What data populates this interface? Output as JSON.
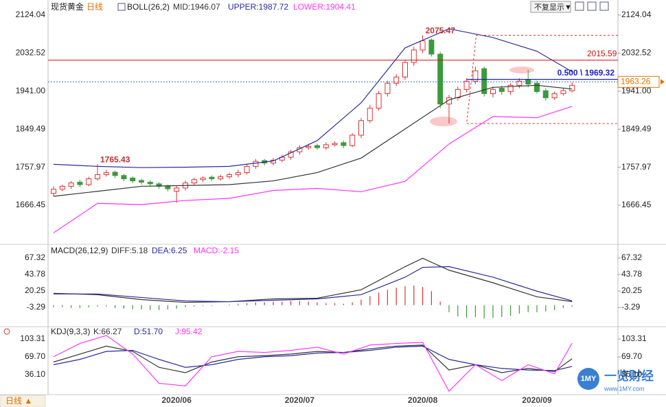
{
  "chart_data": [
    {
      "type": "candlestick",
      "title": "现货黄金",
      "period": "日线",
      "indicator": "BOLL(26,2)",
      "categories": [
        null,
        null,
        null,
        null,
        null,
        null,
        null,
        null,
        null,
        null,
        null,
        null,
        null,
        null,
        "2020/06",
        null,
        null,
        null,
        null,
        null,
        null,
        null,
        null,
        null,
        null,
        null,
        null,
        null,
        "2020/07",
        null,
        null,
        null,
        null,
        null,
        null,
        null,
        null,
        null,
        null,
        null,
        null,
        null,
        "2020/08",
        null,
        null,
        null,
        null,
        null,
        null,
        null,
        null,
        null,
        null,
        null,
        null,
        "2020/09",
        null,
        null,
        null,
        null
      ],
      "open": [
        1695,
        1705,
        1712,
        1722,
        1716,
        1730,
        1740,
        1746,
        1738,
        1732,
        1726,
        1722,
        1718,
        1712,
        1700,
        1708,
        1720,
        1728,
        1734,
        1730,
        1735,
        1740,
        1745,
        1760,
        1774,
        1768,
        1775,
        1782,
        1795,
        1805,
        1810,
        1805,
        1812,
        1817,
        1810,
        1835,
        1870,
        1900,
        1935,
        1960,
        1975,
        2010,
        2040,
        2064,
        2030,
        1910,
        1925,
        1945,
        1965,
        1995,
        1935,
        1948,
        1940,
        1955,
        1968,
        1960,
        1942,
        1925,
        1935,
        1942
      ],
      "high": [
        1712,
        1716,
        1725,
        1728,
        1735,
        1765.43,
        1752,
        1750,
        1742,
        1736,
        1730,
        1726,
        1722,
        1716,
        1714,
        1726,
        1733,
        1736,
        1738,
        1740,
        1745,
        1752,
        1766,
        1778,
        1778,
        1780,
        1788,
        1800,
        1811,
        1814,
        1815,
        1818,
        1820,
        1822,
        1840,
        1876,
        1908,
        1942,
        1966,
        1982,
        2016,
        2048,
        2075.47,
        2068,
        2036,
        1932,
        1952,
        1972,
        2000,
        2000,
        1952,
        1954,
        1960,
        1972,
        1992,
        1966,
        1948,
        1940,
        1948,
        1962
      ],
      "low": [
        1688,
        1700,
        1706,
        1710,
        1712,
        1726,
        1735,
        1732,
        1724,
        1720,
        1716,
        1712,
        1706,
        1700,
        1672,
        1702,
        1714,
        1722,
        1724,
        1726,
        1730,
        1734,
        1740,
        1754,
        1762,
        1762,
        1770,
        1776,
        1788,
        1800,
        1800,
        1800,
        1808,
        1804,
        1806,
        1828,
        1864,
        1894,
        1928,
        1954,
        1968,
        2002,
        2032,
        2024,
        1900,
        1863,
        1918,
        1938,
        1958,
        1928,
        1926,
        1932,
        1932,
        1948,
        1950,
        1935,
        1918,
        1920,
        1930,
        1938
      ],
      "close": [
        1705,
        1712,
        1720,
        1716,
        1730,
        1740,
        1745,
        1738,
        1730,
        1725,
        1722,
        1718,
        1712,
        1706,
        1708,
        1720,
        1728,
        1732,
        1730,
        1735,
        1740,
        1745,
        1760,
        1772,
        1768,
        1775,
        1782,
        1795,
        1805,
        1808,
        1805,
        1812,
        1815,
        1810,
        1835,
        1870,
        1900,
        1935,
        1960,
        1975,
        2010,
        2040,
        2062,
        2030,
        1910,
        1925,
        1945,
        1965,
        1990,
        1935,
        1945,
        1940,
        1955,
        1965,
        1958,
        1940,
        1925,
        1935,
        1942,
        1955
      ],
      "up_color": "#e03030",
      "down_color": "#3c9a3c",
      "series": [
        {
          "name": "MID:1946.07",
          "color": "#333333",
          "x": [
            0,
            5,
            10,
            15,
            20,
            25,
            30,
            35,
            40,
            45,
            50,
            55,
            59
          ],
          "values": [
            1688,
            1700,
            1712,
            1714,
            1716,
            1725,
            1745,
            1780,
            1850,
            1920,
            1950,
            1955,
            1946.07
          ]
        },
        {
          "name": "UPPER:1987.72",
          "color": "#2a2a9a",
          "x": [
            0,
            5,
            10,
            15,
            20,
            25,
            30,
            35,
            40,
            45,
            50,
            55,
            59
          ],
          "values": [
            1765,
            1760,
            1757,
            1758,
            1760,
            1773,
            1822,
            1913,
            2045,
            2091,
            2070,
            2037,
            1987.72
          ]
        },
        {
          "name": "LOWER:1904.41",
          "color": "#ff33ff",
          "x": [
            0,
            5,
            10,
            15,
            20,
            25,
            30,
            35,
            40,
            45,
            50,
            55,
            59
          ],
          "values": [
            1600,
            1671,
            1668,
            1678,
            1683,
            1702,
            1707,
            1699,
            1724,
            1814,
            1880,
            1877,
            1904.41
          ]
        }
      ],
      "hline": {
        "value": 2015.59,
        "color": "#d01010"
      },
      "fib": {
        "text": "0.500 \\ 1969.32",
        "value": 1969.32,
        "start": 47,
        "top": 2075.47,
        "bottom": 1863,
        "color": "#2020c0",
        "box_color": "#e03030"
      },
      "last_price": {
        "value": 1963.26,
        "color": "#3070c0"
      },
      "ylim": [
        1579,
        2152
      ],
      "yticks": [
        2124.04,
        2032.52,
        {
          "value": 1941,
          "label": "1941.00"
        },
        1849.49,
        1757.97,
        1666.45
      ]
    },
    {
      "type": "macd",
      "title": "MACD(26,12,9)",
      "up_color": "#e03030",
      "down_color": "#3c9a3c",
      "series": [
        {
          "name": "DIFF:5.18",
          "color": "#333333",
          "x": [
            0,
            5,
            10,
            15,
            20,
            25,
            30,
            35,
            40,
            42,
            45,
            50,
            55,
            59
          ],
          "values": [
            17,
            15,
            8,
            4,
            5,
            9,
            10,
            22,
            55,
            67,
            50,
            32,
            12,
            5.18
          ]
        },
        {
          "name": "DEA:6.25",
          "color": "#2a2a9a",
          "x": [
            0,
            5,
            10,
            15,
            20,
            25,
            30,
            35,
            40,
            42,
            45,
            50,
            55,
            59
          ],
          "values": [
            16,
            16,
            11,
            6,
            5,
            7,
            9,
            15,
            40,
            54,
            55,
            40,
            20,
            6.25
          ]
        }
      ],
      "histogram": {
        "name": "MACD:-2.15",
        "color": "#ff33ff",
        "values": [
          -3,
          -3,
          -4,
          -4,
          -3,
          -2,
          -2,
          -4,
          -5,
          -6,
          -6,
          -7,
          -7,
          -6,
          -5,
          -3,
          -2,
          -1,
          -1,
          0,
          1,
          2,
          3,
          4,
          4,
          5,
          5,
          6,
          6,
          5,
          4,
          3,
          3,
          2,
          4,
          8,
          13,
          18,
          22,
          25,
          27,
          28,
          26,
          20,
          5,
          -10,
          -16,
          -18,
          -17,
          -19,
          -18,
          -17,
          -15,
          -12,
          -10,
          -10,
          -9,
          -7,
          -4,
          -2.15
        ]
      },
      "ylim": [
        -26.8,
        81
      ],
      "yticks": [
        67.32,
        43.78,
        20.25,
        -3.29
      ]
    },
    {
      "type": "kdj",
      "title": "KDJ(9,3,3)",
      "series": [
        {
          "name": "K:66.27",
          "color": "#333333",
          "x": [
            0,
            3,
            6,
            9,
            12,
            15,
            18,
            21,
            24,
            27,
            30,
            33,
            36,
            39,
            42,
            45,
            48,
            51,
            54,
            57,
            59
          ],
          "values": [
            60,
            75,
            90,
            80,
            50,
            40,
            60,
            70,
            72,
            75,
            80,
            78,
            85,
            90,
            92,
            45,
            55,
            40,
            48,
            42,
            66.27
          ]
        },
        {
          "name": "D:51.70",
          "color": "#2a2a9a",
          "x": [
            0,
            3,
            6,
            9,
            12,
            15,
            18,
            21,
            24,
            27,
            30,
            33,
            36,
            39,
            42,
            45,
            48,
            51,
            54,
            57,
            59
          ],
          "values": [
            55,
            65,
            80,
            82,
            65,
            50,
            55,
            65,
            70,
            72,
            77,
            78,
            82,
            88,
            90,
            65,
            55,
            48,
            45,
            44,
            51.7
          ]
        },
        {
          "name": "J:95.42",
          "color": "#ff33ff",
          "x": [
            0,
            3,
            6,
            9,
            12,
            15,
            18,
            21,
            24,
            27,
            30,
            33,
            36,
            39,
            42,
            45,
            48,
            51,
            54,
            57,
            59
          ],
          "values": [
            70,
            95,
            110,
            75,
            20,
            15,
            70,
            80,
            78,
            82,
            88,
            75,
            92,
            95,
            97,
            5,
            55,
            25,
            55,
            38,
            95.42
          ]
        }
      ],
      "ylim": [
        -1.4,
        121.4
      ],
      "yticks": [
        103.31,
        {
          "value": 69.7,
          "label": "69.70"
        },
        {
          "value": 36.1,
          "label": "36.10"
        }
      ]
    }
  ],
  "button": "不复显示▼",
  "footer_tab": "日线 ▲",
  "watermark": {
    "logo": "1MY",
    "name": "一览财经",
    "url": "www.1MY.com"
  }
}
